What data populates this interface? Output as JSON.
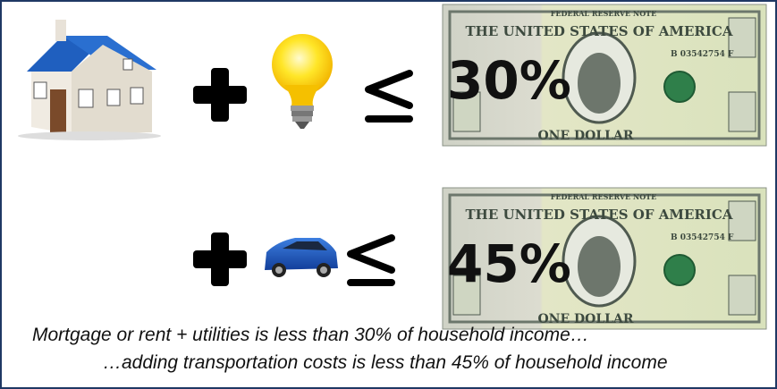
{
  "rows": [
    {
      "percent": "30%",
      "bill": {
        "header": "FEDERAL RESERVE NOTE",
        "title": "THE UNITED STATES OF AMERICA",
        "serial": "B 03542754 F",
        "denomination": "ONE DOLLAR"
      }
    },
    {
      "percent": "45%",
      "bill": {
        "header": "FEDERAL RESERVE NOTE",
        "title": "THE UNITED STATES OF AMERICA",
        "serial": "B 03542754 F",
        "denomination": "ONE DOLLAR"
      }
    }
  ],
  "caption": {
    "line1": "Mortgage or rent + utilities is less than 30% of household income…",
    "line2": "…adding transportation costs is less than 45% of household income"
  }
}
